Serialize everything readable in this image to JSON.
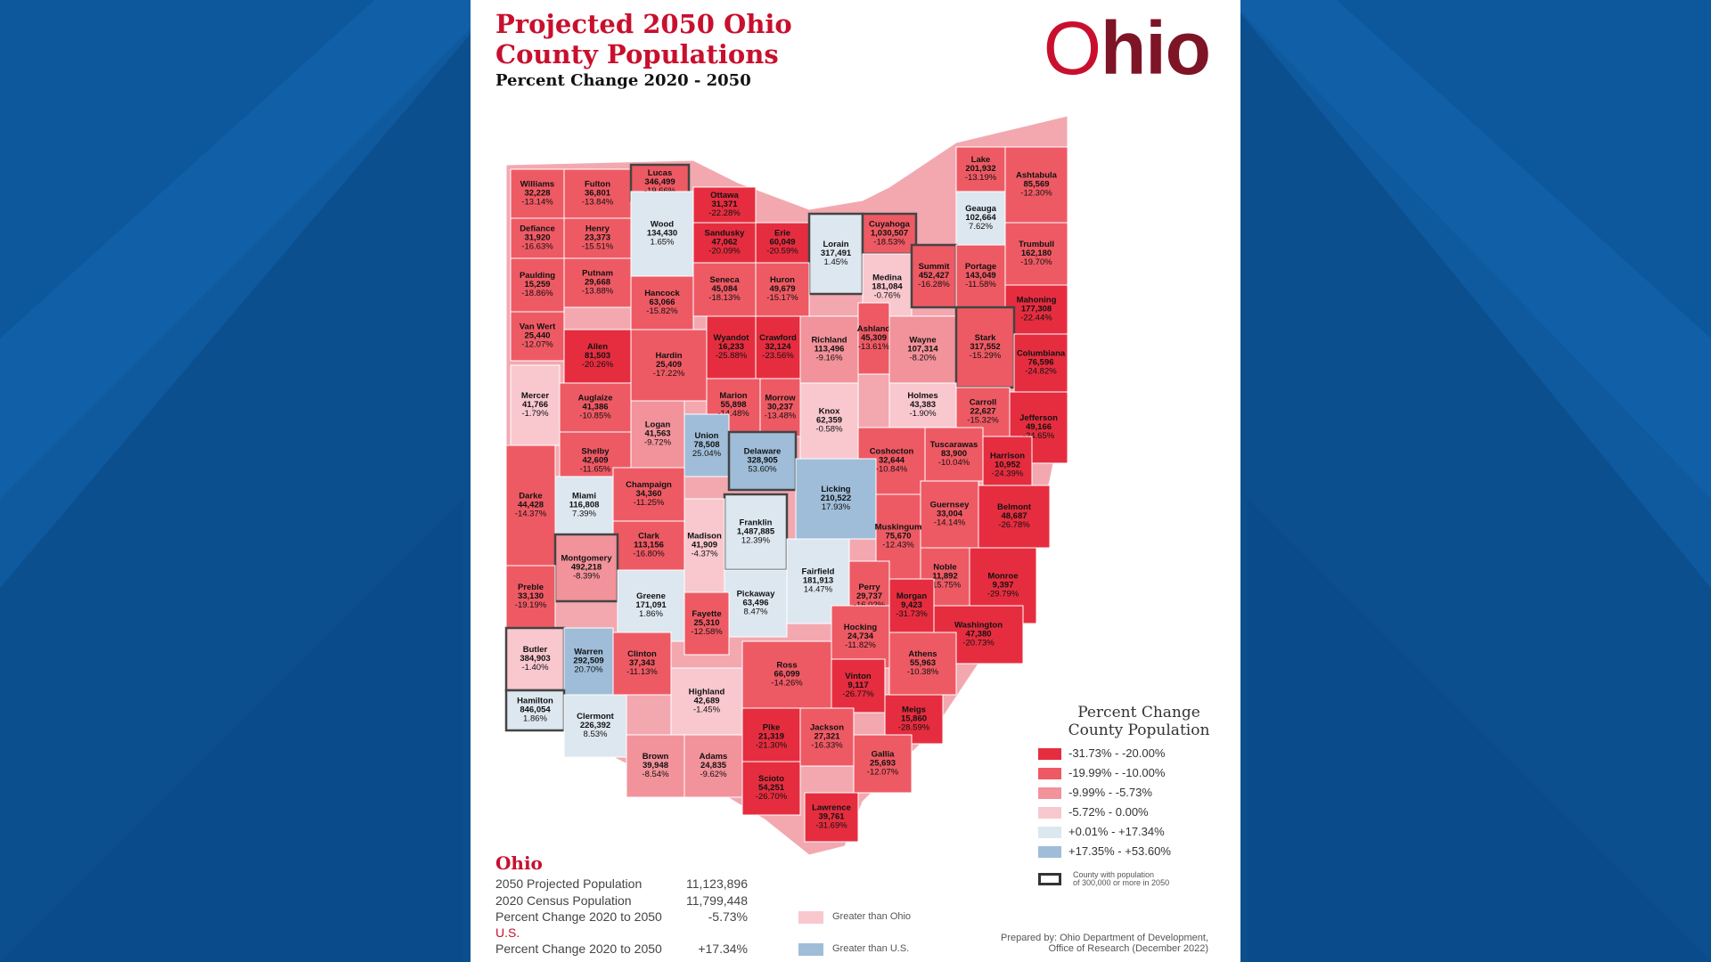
{
  "title_line1": "Projected 2050 Ohio",
  "title_line2": "County Populations",
  "subtitle": "Percent Change 2020 - 2050",
  "logo": "Ohio",
  "colors": {
    "bg_dark": "#0b4f8f",
    "bg_mid": "#1565ad",
    "bin1": "#e62d3f",
    "bin2": "#ee5a64",
    "bin3": "#f2929a",
    "bin4": "#f8c8ce",
    "bin5": "#dde7f0",
    "bin6": "#9fbdd8"
  },
  "counties": [
    {
      "name": "Williams",
      "pop": "32,228",
      "chg": "-13.14%",
      "bin": 2,
      "big": false
    },
    {
      "name": "Fulton",
      "pop": "36,801",
      "chg": "-13.84%",
      "bin": 2,
      "big": false
    },
    {
      "name": "Lucas",
      "pop": "346,499",
      "chg": "-19.66%",
      "bin": 2,
      "big": true
    },
    {
      "name": "Ottawa",
      "pop": "31,371",
      "chg": "-22.28%",
      "bin": 1,
      "big": false
    },
    {
      "name": "Defiance",
      "pop": "31,920",
      "chg": "-16.63%",
      "bin": 2,
      "big": false
    },
    {
      "name": "Henry",
      "pop": "23,373",
      "chg": "-15.51%",
      "bin": 2,
      "big": false
    },
    {
      "name": "Wood",
      "pop": "134,430",
      "chg": "1.65%",
      "bin": 5,
      "big": false
    },
    {
      "name": "Sandusky",
      "pop": "47,062",
      "chg": "-20.09%",
      "bin": 1,
      "big": false
    },
    {
      "name": "Erie",
      "pop": "60,049",
      "chg": "-20.59%",
      "bin": 1,
      "big": false
    },
    {
      "name": "Lorain",
      "pop": "317,491",
      "chg": "1.45%",
      "bin": 5,
      "big": true
    },
    {
      "name": "Cuyahoga",
      "pop": "1,030,507",
      "chg": "-18.53%",
      "bin": 2,
      "big": true
    },
    {
      "name": "Lake",
      "pop": "201,932",
      "chg": "-13.19%",
      "bin": 2,
      "big": false
    },
    {
      "name": "Geauga",
      "pop": "102,664",
      "chg": "7.62%",
      "bin": 5,
      "big": false
    },
    {
      "name": "Ashtabula",
      "pop": "85,569",
      "chg": "-12.30%",
      "bin": 2,
      "big": false
    },
    {
      "name": "Trumbull",
      "pop": "162,180",
      "chg": "-19.70%",
      "bin": 2,
      "big": false
    },
    {
      "name": "Paulding",
      "pop": "15,259",
      "chg": "-18.86%",
      "bin": 2,
      "big": false
    },
    {
      "name": "Putnam",
      "pop": "29,668",
      "chg": "-13.88%",
      "bin": 2,
      "big": false
    },
    {
      "name": "Hancock",
      "pop": "63,066",
      "chg": "-15.82%",
      "bin": 2,
      "big": false
    },
    {
      "name": "Seneca",
      "pop": "45,084",
      "chg": "-18.13%",
      "bin": 2,
      "big": false
    },
    {
      "name": "Huron",
      "pop": "49,679",
      "chg": "-15.17%",
      "bin": 2,
      "big": false
    },
    {
      "name": "Medina",
      "pop": "181,084",
      "chg": "-0.76%",
      "bin": 4,
      "big": false
    },
    {
      "name": "Summit",
      "pop": "452,427",
      "chg": "-16.28%",
      "bin": 2,
      "big": true
    },
    {
      "name": "Portage",
      "pop": "143,049",
      "chg": "-11.58%",
      "bin": 2,
      "big": false
    },
    {
      "name": "Mahoning",
      "pop": "177,308",
      "chg": "-22.44%",
      "bin": 1,
      "big": false
    },
    {
      "name": "Van Wert",
      "pop": "25,440",
      "chg": "-12.07%",
      "bin": 2,
      "big": false
    },
    {
      "name": "Allen",
      "pop": "81,503",
      "chg": "-20.26%",
      "bin": 1,
      "big": false
    },
    {
      "name": "Wyandot",
      "pop": "16,233",
      "chg": "-25.88%",
      "bin": 1,
      "big": false
    },
    {
      "name": "Crawford",
      "pop": "32,124",
      "chg": "-23.56%",
      "bin": 1,
      "big": false
    },
    {
      "name": "Richland",
      "pop": "113,496",
      "chg": "-9.16%",
      "bin": 3,
      "big": false
    },
    {
      "name": "Ashland",
      "pop": "45,309",
      "chg": "-13.61%",
      "bin": 2,
      "big": false
    },
    {
      "name": "Wayne",
      "pop": "107,314",
      "chg": "-8.20%",
      "bin": 3,
      "big": false
    },
    {
      "name": "Stark",
      "pop": "317,552",
      "chg": "-15.29%",
      "bin": 2,
      "big": true
    },
    {
      "name": "Columbiana",
      "pop": "76,596",
      "chg": "-24.82%",
      "bin": 1,
      "big": false
    },
    {
      "name": "Hardin",
      "pop": "25,409",
      "chg": "-17.22%",
      "bin": 2,
      "big": false
    },
    {
      "name": "Mercer",
      "pop": "41,766",
      "chg": "-1.79%",
      "bin": 4,
      "big": false
    },
    {
      "name": "Auglaize",
      "pop": "41,386",
      "chg": "-10.85%",
      "bin": 2,
      "big": false
    },
    {
      "name": "Marion",
      "pop": "55,898",
      "chg": "-14.48%",
      "bin": 2,
      "big": false
    },
    {
      "name": "Morrow",
      "pop": "30,237",
      "chg": "-13.48%",
      "bin": 2,
      "big": false
    },
    {
      "name": "Knox",
      "pop": "62,359",
      "chg": "-0.58%",
      "bin": 4,
      "big": false
    },
    {
      "name": "Holmes",
      "pop": "43,383",
      "chg": "-1.90%",
      "bin": 4,
      "big": false
    },
    {
      "name": "Carroll",
      "pop": "22,627",
      "chg": "-15.32%",
      "bin": 2,
      "big": false
    },
    {
      "name": "Jefferson",
      "pop": "49,166",
      "chg": "-24.65%",
      "bin": 1,
      "big": false
    },
    {
      "name": "Logan",
      "pop": "41,563",
      "chg": "-9.72%",
      "bin": 3,
      "big": false
    },
    {
      "name": "Union",
      "pop": "78,508",
      "chg": "25.04%",
      "bin": 6,
      "big": false
    },
    {
      "name": "Delaware",
      "pop": "328,905",
      "chg": "53.60%",
      "bin": 6,
      "big": true
    },
    {
      "name": "Shelby",
      "pop": "42,609",
      "chg": "-11.65%",
      "bin": 2,
      "big": false
    },
    {
      "name": "Coshocton",
      "pop": "32,644",
      "chg": "-10.84%",
      "bin": 2,
      "big": false
    },
    {
      "name": "Tuscarawas",
      "pop": "83,900",
      "chg": "-10.04%",
      "bin": 2,
      "big": false
    },
    {
      "name": "Harrison",
      "pop": "10,952",
      "chg": "-24.39%",
      "bin": 1,
      "big": false
    },
    {
      "name": "Darke",
      "pop": "44,428",
      "chg": "-14.37%",
      "bin": 2,
      "big": false
    },
    {
      "name": "Miami",
      "pop": "116,808",
      "chg": "7.39%",
      "bin": 5,
      "big": false
    },
    {
      "name": "Champaign",
      "pop": "34,360",
      "chg": "-11.25%",
      "bin": 2,
      "big": false
    },
    {
      "name": "Licking",
      "pop": "210,522",
      "chg": "17.93%",
      "bin": 6,
      "big": false
    },
    {
      "name": "Franklin",
      "pop": "1,487,885",
      "chg": "12.39%",
      "bin": 5,
      "big": true
    },
    {
      "name": "Guernsey",
      "pop": "33,004",
      "chg": "-14.14%",
      "bin": 2,
      "big": false
    },
    {
      "name": "Belmont",
      "pop": "48,687",
      "chg": "-26.78%",
      "bin": 1,
      "big": false
    },
    {
      "name": "Muskingum",
      "pop": "75,670",
      "chg": "-12.43%",
      "bin": 2,
      "big": false
    },
    {
      "name": "Clark",
      "pop": "113,156",
      "chg": "-16.80%",
      "bin": 2,
      "big": false
    },
    {
      "name": "Madison",
      "pop": "41,909",
      "chg": "-4.37%",
      "bin": 4,
      "big": false
    },
    {
      "name": "Montgomery",
      "pop": "492,218",
      "chg": "-8.39%",
      "bin": 3,
      "big": true
    },
    {
      "name": "Preble",
      "pop": "33,130",
      "chg": "-19.19%",
      "bin": 2,
      "big": false
    },
    {
      "name": "Greene",
      "pop": "171,091",
      "chg": "1.86%",
      "bin": 5,
      "big": false
    },
    {
      "name": "Fairfield",
      "pop": "181,913",
      "chg": "14.47%",
      "bin": 5,
      "big": false
    },
    {
      "name": "Perry",
      "pop": "29,737",
      "chg": "-16.02%",
      "bin": 2,
      "big": false
    },
    {
      "name": "Noble",
      "pop": "11,892",
      "chg": "-15.75%",
      "bin": 2,
      "big": false
    },
    {
      "name": "Monroe",
      "pop": "9,397",
      "chg": "-29.79%",
      "bin": 1,
      "big": false
    },
    {
      "name": "Pickaway",
      "pop": "63,496",
      "chg": "8.47%",
      "bin": 5,
      "big": false
    },
    {
      "name": "Fayette",
      "pop": "25,310",
      "chg": "-12.58%",
      "bin": 2,
      "big": false
    },
    {
      "name": "Morgan",
      "pop": "9,423",
      "chg": "-31.73%",
      "bin": 1,
      "big": false
    },
    {
      "name": "Butler",
      "pop": "384,903",
      "chg": "-1.40%",
      "bin": 4,
      "big": true
    },
    {
      "name": "Warren",
      "pop": "292,509",
      "chg": "20.70%",
      "bin": 6,
      "big": false
    },
    {
      "name": "Clinton",
      "pop": "37,343",
      "chg": "-11.13%",
      "bin": 2,
      "big": false
    },
    {
      "name": "Hocking",
      "pop": "24,734",
      "chg": "-11.82%",
      "bin": 2,
      "big": false
    },
    {
      "name": "Washington",
      "pop": "47,380",
      "chg": "-20.73%",
      "bin": 1,
      "big": false
    },
    {
      "name": "Ross",
      "pop": "66,099",
      "chg": "-14.26%",
      "bin": 2,
      "big": false
    },
    {
      "name": "Athens",
      "pop": "55,963",
      "chg": "-10.38%",
      "bin": 2,
      "big": false
    },
    {
      "name": "Hamilton",
      "pop": "846,054",
      "chg": "1.86%",
      "bin": 5,
      "big": true
    },
    {
      "name": "Vinton",
      "pop": "9,117",
      "chg": "-26.77%",
      "bin": 1,
      "big": false
    },
    {
      "name": "Highland",
      "pop": "42,689",
      "chg": "-1.45%",
      "bin": 4,
      "big": false
    },
    {
      "name": "Clermont",
      "pop": "226,392",
      "chg": "8.53%",
      "bin": 5,
      "big": false
    },
    {
      "name": "Meigs",
      "pop": "15,860",
      "chg": "-28.59%",
      "bin": 1,
      "big": false
    },
    {
      "name": "Pike",
      "pop": "21,319",
      "chg": "-21.30%",
      "bin": 1,
      "big": false
    },
    {
      "name": "Jackson",
      "pop": "27,321",
      "chg": "-16.33%",
      "bin": 2,
      "big": false
    },
    {
      "name": "Gallia",
      "pop": "25,693",
      "chg": "-12.07%",
      "bin": 2,
      "big": false
    },
    {
      "name": "Brown",
      "pop": "39,948",
      "chg": "-8.54%",
      "bin": 3,
      "big": false
    },
    {
      "name": "Adams",
      "pop": "24,835",
      "chg": "-9.62%",
      "bin": 3,
      "big": false
    },
    {
      "name": "Scioto",
      "pop": "54,251",
      "chg": "-26.70%",
      "bin": 1,
      "big": false
    },
    {
      "name": "Lawrence",
      "pop": "39,761",
      "chg": "-31.69%",
      "bin": 1,
      "big": false
    }
  ],
  "legend": {
    "title_line1": "Percent Change",
    "title_line2": "County Population",
    "items": [
      {
        "label": "-31.73% - -20.00%",
        "bin": 1
      },
      {
        "label": "-19.99% - -10.00%",
        "bin": 2
      },
      {
        "label": "-9.99% - -5.73%",
        "bin": 3
      },
      {
        "label": "-5.72% - 0.00%",
        "bin": 4
      },
      {
        "label": "+0.01% - +17.34%",
        "bin": 5
      },
      {
        "label": "+17.35% - +53.60%",
        "bin": 6
      }
    ],
    "note_line1": "County with population",
    "note_line2": "of 300,000 or more in 2050"
  },
  "stats": {
    "title": "Ohio",
    "rows": [
      {
        "label": "2050 Projected Population",
        "value": "11,123,896"
      },
      {
        "label": "2020 Census Population",
        "value": "11,799,448"
      },
      {
        "label": "Percent Change 2020 to 2050",
        "value": "-5.73%"
      },
      {
        "label": "Percent Change 2020 to 2050",
        "value": "+17.34%"
      }
    ],
    "us_label": "U.S.",
    "key_ohio": "Greater than Ohio",
    "key_us": "Greater than U.S."
  },
  "prepared_line1": "Prepared by:  Ohio Department of Development,",
  "prepared_line2": "Office of Research (December 2022)"
}
